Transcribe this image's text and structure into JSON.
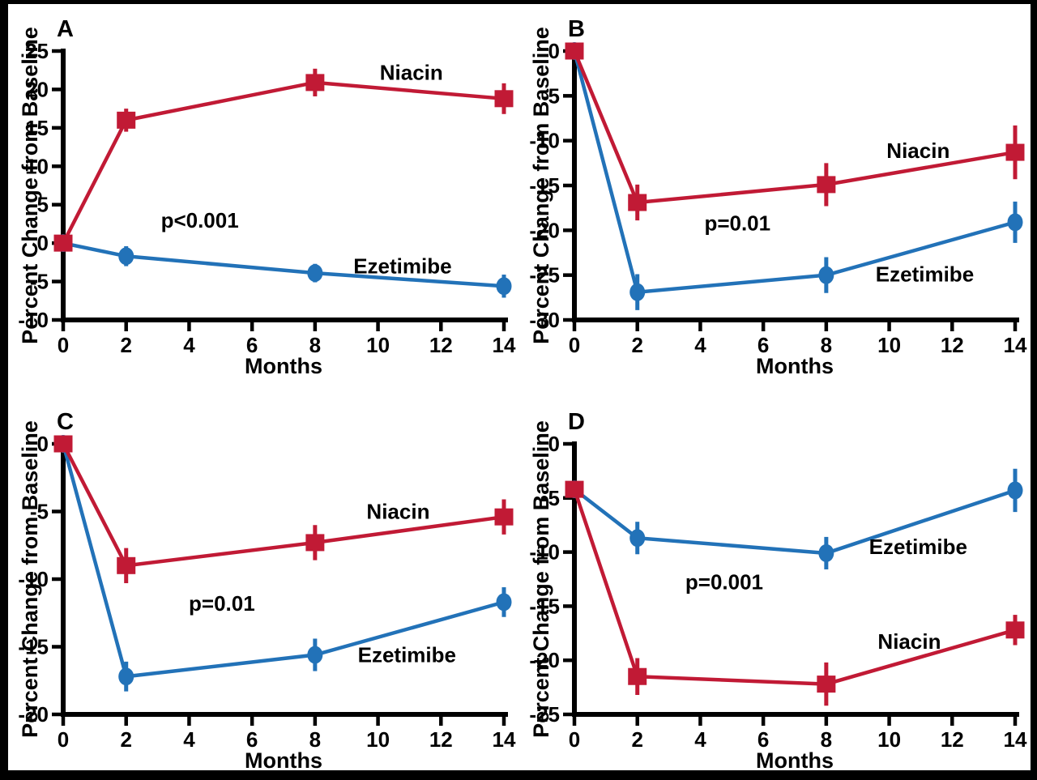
{
  "figure": {
    "background": "#ffffff",
    "frame_color": "#000000",
    "xlabel": "Months",
    "ylabel": "Percent Change from Baseline",
    "series_names": [
      "Ezetimibe",
      "Niacin"
    ],
    "colors": {
      "niacin": "#C11A35",
      "ezetimibe": "#2272B8",
      "axis": "#000000",
      "annotation": "#000000"
    }
  },
  "chart_data": [
    {
      "type": "line",
      "panel_label": "A",
      "xlabel": "Months",
      "ylabel": "Percent Change from Baseline",
      "x": [
        0,
        2,
        8,
        14
      ],
      "xlim": [
        0,
        14
      ],
      "xticks": [
        0,
        2,
        4,
        6,
        8,
        10,
        12,
        14
      ],
      "ylim": [
        -10,
        25
      ],
      "yticks": [
        25,
        20,
        15,
        10,
        5,
        0,
        -5,
        -10
      ],
      "grid": false,
      "p_label": "p<0.001",
      "p_pos": {
        "fx": 0.31,
        "fy": 0.63
      },
      "series": [
        {
          "name": "Ezetimibe",
          "color": "#2272B8",
          "marker": "circle",
          "values": [
            0,
            -1.7,
            -3.9,
            -5.6
          ],
          "errors": [
            0,
            1.3,
            1.2,
            1.5
          ],
          "label_pos": {
            "fx": 0.77,
            "fy": 0.8
          }
        },
        {
          "name": "Niacin",
          "color": "#C11A35",
          "marker": "square",
          "values": [
            0,
            16.0,
            20.9,
            18.8
          ],
          "errors": [
            0,
            1.5,
            1.8,
            2.0
          ],
          "label_pos": {
            "fx": 0.79,
            "fy": 0.08
          }
        }
      ]
    },
    {
      "type": "line",
      "panel_label": "B",
      "xlabel": "Months",
      "ylabel": "Percent Change from Baseline",
      "x": [
        0,
        2,
        8,
        14
      ],
      "xlim": [
        0,
        14
      ],
      "xticks": [
        0,
        2,
        4,
        6,
        8,
        10,
        12,
        14
      ],
      "ylim": [
        -30,
        0
      ],
      "yticks": [
        0,
        -5,
        -10,
        -15,
        -20,
        -25,
        -30
      ],
      "grid": false,
      "p_label": "p=0.01",
      "p_pos": {
        "fx": 0.37,
        "fy": 0.64
      },
      "series": [
        {
          "name": "Ezetimibe",
          "color": "#2272B8",
          "marker": "circle",
          "values": [
            0,
            -26.9,
            -25.0,
            -19.1
          ],
          "errors": [
            0,
            2.0,
            2.0,
            2.3
          ],
          "label_pos": {
            "fx": 0.795,
            "fy": 0.83
          }
        },
        {
          "name": "Niacin",
          "color": "#C11A35",
          "marker": "square",
          "values": [
            0,
            -16.9,
            -14.9,
            -11.3
          ],
          "errors": [
            0,
            2.0,
            2.4,
            3.0
          ],
          "label_pos": {
            "fx": 0.78,
            "fy": 0.37
          }
        }
      ]
    },
    {
      "type": "line",
      "panel_label": "C",
      "xlabel": "Months",
      "ylabel": "Percent Change from Baseline",
      "x": [
        0,
        2,
        8,
        14
      ],
      "xlim": [
        0,
        14
      ],
      "xticks": [
        0,
        2,
        4,
        6,
        8,
        10,
        12,
        14
      ],
      "ylim": [
        -20,
        0
      ],
      "yticks": [
        0,
        -5,
        -10,
        -15,
        -20
      ],
      "grid": false,
      "p_label": "p=0.01",
      "p_pos": {
        "fx": 0.36,
        "fy": 0.59
      },
      "series": [
        {
          "name": "Ezetimibe",
          "color": "#2272B8",
          "marker": "circle",
          "values": [
            0,
            -17.2,
            -15.6,
            -11.7
          ],
          "errors": [
            0,
            1.1,
            1.2,
            1.1
          ],
          "label_pos": {
            "fx": 0.78,
            "fy": 0.78
          }
        },
        {
          "name": "Niacin",
          "color": "#C11A35",
          "marker": "square",
          "values": [
            0,
            -9.0,
            -7.3,
            -5.4
          ],
          "errors": [
            0,
            1.3,
            1.3,
            1.3
          ],
          "label_pos": {
            "fx": 0.76,
            "fy": 0.25
          }
        }
      ]
    },
    {
      "type": "line",
      "panel_label": "D",
      "xlabel": "Months",
      "ylabel": "Percent Change from Baseline",
      "x": [
        0,
        2,
        8,
        14
      ],
      "xlim": [
        0,
        14
      ],
      "xticks": [
        0,
        2,
        4,
        6,
        8,
        10,
        12,
        14
      ],
      "ylim": [
        -25,
        0
      ],
      "yticks": [
        0,
        -5,
        -10,
        -15,
        -20,
        -25
      ],
      "grid": false,
      "p_label": "p=0.001",
      "p_pos": {
        "fx": 0.34,
        "fy": 0.51
      },
      "series": [
        {
          "name": "Ezetimibe",
          "color": "#2272B8",
          "marker": "circle",
          "values": [
            -4.2,
            -8.7,
            -10.1,
            -4.3
          ],
          "errors": [
            0,
            1.5,
            1.5,
            2.0
          ],
          "label_pos": {
            "fx": 0.78,
            "fy": 0.38
          }
        },
        {
          "name": "Niacin",
          "color": "#C11A35",
          "marker": "square",
          "values": [
            -4.2,
            -21.5,
            -22.2,
            -17.2
          ],
          "errors": [
            0,
            1.7,
            2.0,
            1.4
          ],
          "label_pos": {
            "fx": 0.76,
            "fy": 0.73
          }
        }
      ]
    }
  ]
}
